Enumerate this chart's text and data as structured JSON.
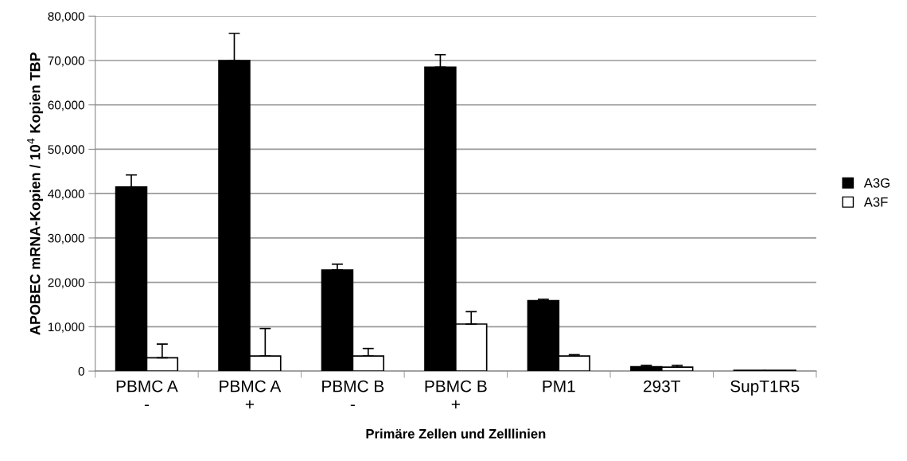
{
  "chart_data": {
    "type": "bar",
    "xlabel": "Primäre Zellen und Zelllinien",
    "ylabel": "APOBEC mRNA-Kopien / 10$^{4}$ Kopien TBP",
    "categories": [
      "PBMC A\n-",
      "PBMC A\n+",
      "PBMC B\n-",
      "PBMC B\n+",
      "PM1",
      "293T",
      "SupT1R5"
    ],
    "series": [
      {
        "name": "A3G",
        "color": "#000000",
        "values": [
          41500,
          70000,
          22800,
          68500,
          15900,
          1000,
          200
        ],
        "errors": [
          [
            41500,
            44200
          ],
          [
            70000,
            76100
          ],
          [
            22800,
            24100
          ],
          [
            68500,
            71300
          ],
          [
            15900,
            16200
          ],
          [
            1000,
            1300
          ],
          null
        ]
      },
      {
        "name": "A3F",
        "color": "#ffffff",
        "values": [
          3000,
          3400,
          3400,
          10600,
          3400,
          900,
          200
        ],
        "errors": [
          [
            3000,
            6100
          ],
          [
            3400,
            9600
          ],
          [
            3400,
            5100
          ],
          [
            10600,
            13400
          ],
          [
            3400,
            3700
          ],
          [
            900,
            1300
          ],
          null
        ]
      }
    ],
    "ylim": [
      0,
      80000
    ],
    "yticks": [
      {
        "value": 0,
        "label": "0"
      },
      {
        "value": 10000,
        "label": "10,000"
      },
      {
        "value": 20000,
        "label": "20,000"
      },
      {
        "value": 30000,
        "label": "30,000"
      },
      {
        "value": 40000,
        "label": "40,000"
      },
      {
        "value": 50000,
        "label": "50,000"
      },
      {
        "value": 60000,
        "label": "60,000"
      },
      {
        "value": 70000,
        "label": "70,000"
      },
      {
        "value": 80000,
        "label": "80,000"
      }
    ],
    "grid": "y",
    "legend": "right"
  }
}
